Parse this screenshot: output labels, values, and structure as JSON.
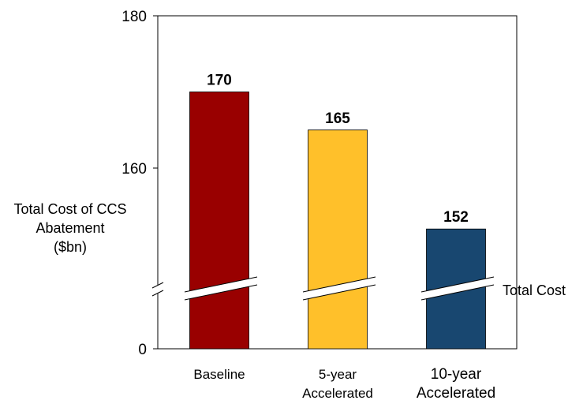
{
  "chart_data": {
    "type": "bar",
    "categories": [
      "Baseline",
      "5-year Accelerated",
      "10-year Accelerated"
    ],
    "category_lines": [
      [
        "Baseline"
      ],
      [
        "5-year",
        "Accelerated"
      ],
      [
        "10-year",
        "Accelerated"
      ]
    ],
    "values": [
      170,
      165,
      152
    ],
    "colors": [
      "#990000",
      "#FFC02A",
      "#184770"
    ],
    "title": "",
    "ylabel_lines": [
      "Total Cost of CCS",
      "Abatement",
      "($bn)"
    ],
    "ylabel": "Total Cost of CCS Abatement ($bn)",
    "yticks": [
      0,
      160,
      180
    ],
    "ylim": [
      0,
      180
    ],
    "axis_break": true,
    "break_label": "Total Cost",
    "grid": false
  }
}
